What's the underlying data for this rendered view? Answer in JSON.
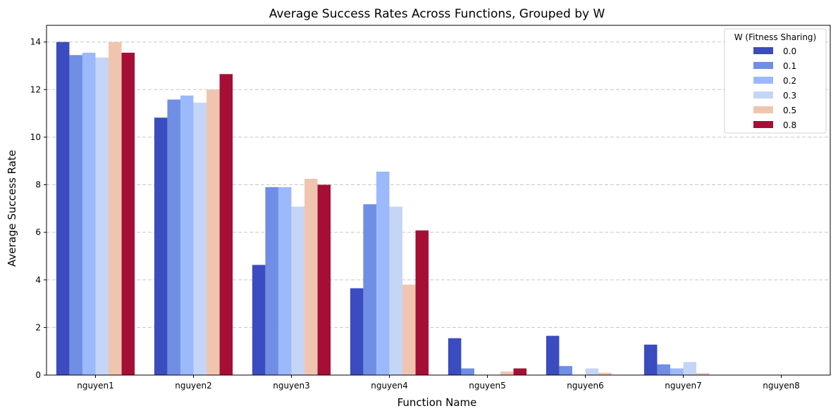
{
  "chart_data": {
    "type": "bar",
    "title": "Average Success Rates Across Functions, Grouped by W",
    "xlabel": "Function Name",
    "ylabel": "Average Success Rate",
    "ylim": [
      0,
      14.7
    ],
    "yticks": [
      0,
      2,
      4,
      6,
      8,
      10,
      12,
      14
    ],
    "grid": "y-dashed",
    "legend": {
      "title": "W (Fitness Sharing)",
      "placement": "top-right"
    },
    "categories": [
      "nguyen1",
      "nguyen2",
      "nguyen3",
      "nguyen4",
      "nguyen5",
      "nguyen6",
      "nguyen7",
      "nguyen8"
    ],
    "series": [
      {
        "name": "0.0",
        "color": "#3b4cc0",
        "values": [
          14.0,
          10.82,
          4.63,
          3.65,
          1.55,
          1.65,
          1.28,
          0.0
        ]
      },
      {
        "name": "0.1",
        "color": "#6f8ee4",
        "values": [
          13.45,
          11.58,
          7.9,
          7.18,
          0.28,
          0.38,
          0.45,
          0.0
        ]
      },
      {
        "name": "0.2",
        "color": "#9cb9fb",
        "values": [
          13.55,
          11.75,
          7.9,
          8.55,
          0.0,
          0.0,
          0.28,
          0.0
        ]
      },
      {
        "name": "0.3",
        "color": "#c5d5f6",
        "values": [
          13.35,
          11.45,
          7.08,
          7.08,
          0.0,
          0.28,
          0.55,
          0.0
        ]
      },
      {
        "name": "0.5",
        "color": "#f0c5b0",
        "values": [
          14.0,
          12.0,
          8.25,
          3.8,
          0.15,
          0.1,
          0.08,
          0.0
        ]
      },
      {
        "name": "0.8",
        "color": "#a50f35",
        "values": [
          13.55,
          12.65,
          8.0,
          6.08,
          0.28,
          0.0,
          0.0,
          0.0
        ]
      }
    ]
  }
}
